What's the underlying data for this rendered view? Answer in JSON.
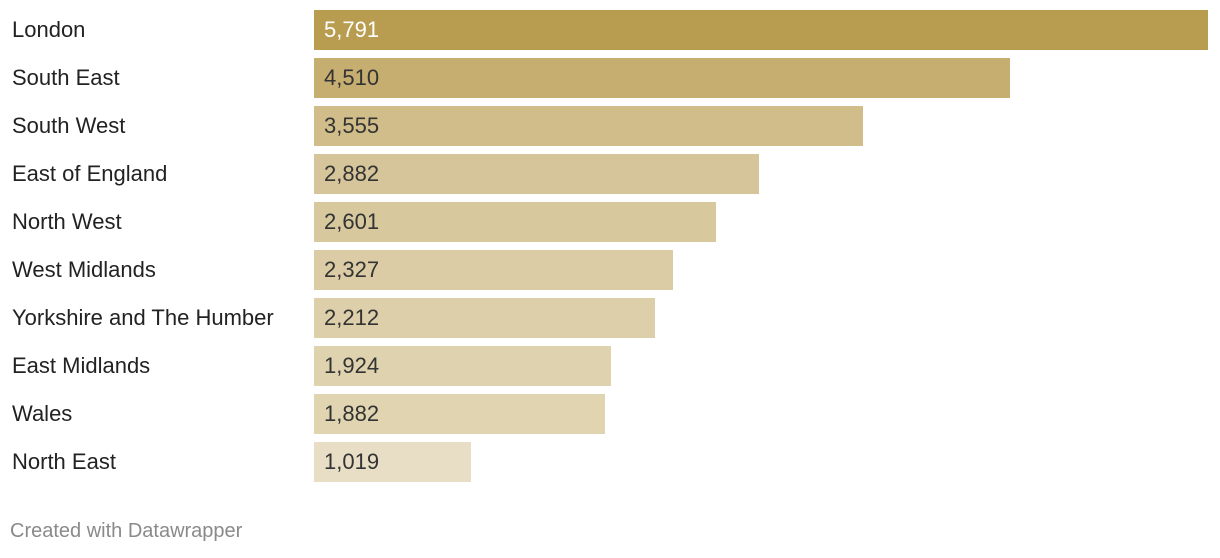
{
  "chart_data": {
    "type": "bar",
    "orientation": "horizontal",
    "title": "",
    "xlabel": "",
    "ylabel": "",
    "categories": [
      "London",
      "South East",
      "South West",
      "East of England",
      "North West",
      "West Midlands",
      "Yorkshire and The Humber",
      "East Midlands",
      "Wales",
      "North East"
    ],
    "values": [
      5791,
      4510,
      3555,
      2882,
      2601,
      2327,
      2212,
      1924,
      1882,
      1019
    ],
    "value_labels": [
      "5,791",
      "4,510",
      "3,555",
      "2,882",
      "2,601",
      "2,327",
      "2,212",
      "1,924",
      "1,882",
      "1,019"
    ],
    "xlim": [
      0,
      5791
    ],
    "grid": false,
    "legend": "none",
    "colors": {
      "bars": [
        "#b89c4f",
        "#c6ad70",
        "#d1bd8a",
        "#d6c59a",
        "#d8c89e",
        "#dbcca5",
        "#ddcfaa",
        "#dfd2af",
        "#e0d4b1",
        "#e8dec6"
      ],
      "value_text_dark": "#333333",
      "value_text_light": "#ffffff",
      "label_text": "#222222"
    }
  },
  "footer": {
    "credit": "Created with Datawrapper"
  }
}
